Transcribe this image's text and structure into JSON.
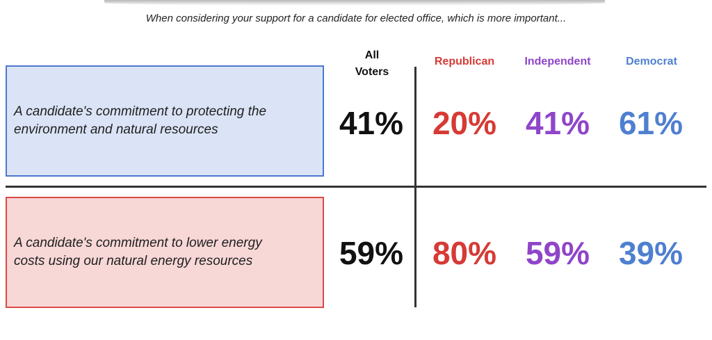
{
  "chart_data": {
    "type": "table",
    "title": "When considering your support for a candidate for elected office, which is more important...",
    "columns": [
      "All\nVoters",
      "Republican",
      "Independent",
      "Democrat"
    ],
    "rows": [
      {
        "label": "A candidate's commitment to protecting the environment and natural resources",
        "values": [
          "41%",
          "20%",
          "41%",
          "61%"
        ]
      },
      {
        "label": "A candidate's commitment to lower energy costs using our natural energy resources",
        "values": [
          "59%",
          "80%",
          "59%",
          "39%"
        ]
      }
    ]
  },
  "header": {
    "all_voters_line1": "All",
    "all_voters_line2": "Voters",
    "republican": "Republican",
    "independent": "Independent",
    "democrat": "Democrat"
  },
  "options": {
    "environment": {
      "line1": "A candidate's commitment to protecting the",
      "line2": "environment and natural resources"
    },
    "energy": {
      "line1": "A candidate's commitment to lower energy",
      "line2": "costs using our natural energy resources"
    }
  },
  "colors": {
    "republican": "#d63a35",
    "independent": "#8f45c9",
    "democrat": "#4f7fd0",
    "environment_box_fill": "#dbe4f6",
    "energy_box_fill": "#f8d7d7"
  }
}
